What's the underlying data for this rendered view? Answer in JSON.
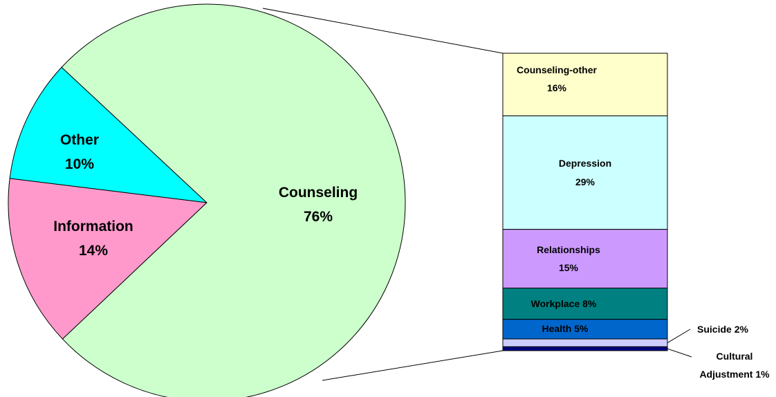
{
  "chart_data": {
    "type": "pie-of-bar",
    "categories": [
      "Other",
      "Information",
      "Counseling"
    ],
    "values": [
      10,
      14,
      76
    ],
    "value_labels": [
      "10%",
      "14%",
      "76%"
    ],
    "colors": [
      "#00ffff",
      "#ff99cc",
      "#ccffcc"
    ],
    "breakdown": {
      "categories": [
        "Counseling-other",
        "Depression",
        "Relationships",
        "Workplace",
        "Health",
        "Suicide",
        "Cultural Adjustment"
      ],
      "values": [
        16,
        29,
        15,
        8,
        5,
        2,
        1
      ],
      "value_labels": [
        "16%",
        "29%",
        "15%",
        "8%",
        "5%",
        "2%",
        "1%"
      ],
      "colors": [
        "#ffffcc",
        "#ccffff",
        "#cc99ff",
        "#008080",
        "#0066cc",
        "#ccccff",
        "#000080"
      ]
    }
  }
}
